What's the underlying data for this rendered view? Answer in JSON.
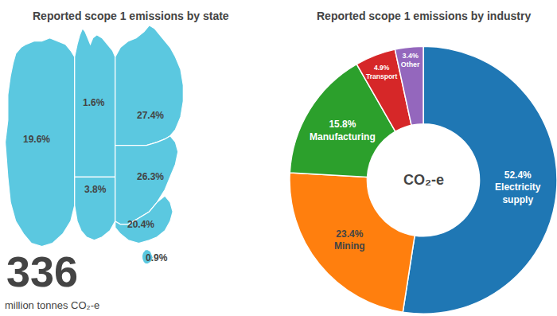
{
  "chart_data": [
    {
      "type": "map",
      "title": "Reported scope 1 emissions by state",
      "values": [
        1.6,
        27.4,
        19.6,
        3.8,
        26.3,
        20.4,
        0.9
      ],
      "value_labels": [
        "1.6%",
        "27.4%",
        "19.6%",
        "3.8%",
        "26.3%",
        "20.4%",
        "0.9%"
      ],
      "data_labels": true,
      "color": "#5bc8e0",
      "total": 336,
      "subtitle": "million tonnes CO₂-e"
    },
    {
      "type": "pie",
      "title": "Reported scope 1 emissions by industry",
      "categories": [
        "Electricity\nsupply",
        "Mining",
        "Manufacturing",
        "Transport",
        "Other"
      ],
      "values": [
        52.4,
        23.4,
        15.8,
        4.9,
        3.4
      ],
      "value_labels": [
        "52.4%",
        "23.4%",
        "15.8%",
        "4.9%",
        "3.4%"
      ],
      "data_labels": true,
      "annotation": "CO₂-e"
    }
  ]
}
